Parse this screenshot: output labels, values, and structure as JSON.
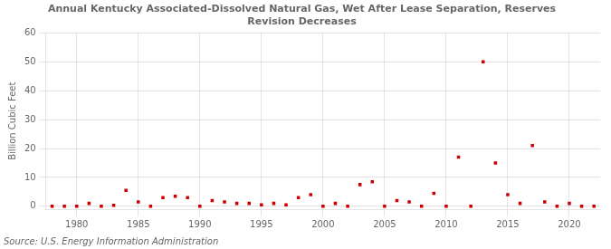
{
  "chart_data": {
    "type": "scatter",
    "title": "Annual Kentucky Associated-Dissolved Natural Gas, Wet After Lease Separation, Reserves\nRevision Decreases",
    "ylabel": "Billion Cubic Feet",
    "source": "Source: U.S. Energy Information Administration",
    "x": [
      1978,
      1979,
      1980,
      1981,
      1982,
      1983,
      1984,
      1985,
      1986,
      1987,
      1988,
      1989,
      1990,
      1991,
      1992,
      1993,
      1994,
      1995,
      1996,
      1997,
      1998,
      1999,
      2000,
      2001,
      2002,
      2003,
      2004,
      2005,
      2006,
      2007,
      2008,
      2009,
      2010,
      2011,
      2012,
      2013,
      2014,
      2015,
      2016,
      2017,
      2018,
      2019,
      2020,
      2021,
      2022
    ],
    "values": [
      0.05,
      0.05,
      0.05,
      1.0,
      0.05,
      0.3,
      5.5,
      1.5,
      0.05,
      3.0,
      3.5,
      3.0,
      0.05,
      2.0,
      1.5,
      1.0,
      1.0,
      0.5,
      1.0,
      0.5,
      3.0,
      4.0,
      0.05,
      1.0,
      0.05,
      7.5,
      8.5,
      0.05,
      2.0,
      1.5,
      0.05,
      4.5,
      0.05,
      17.0,
      0.05,
      50.0,
      15.0,
      4.0,
      1.0,
      21.0,
      1.5,
      0.05,
      1.0,
      0.05,
      0.05
    ],
    "color": "#cc0000",
    "marker": "square",
    "xlim": [
      1977.5,
      2022.5
    ],
    "xticks": [
      1980,
      1985,
      1990,
      1995,
      2000,
      2005,
      2010,
      2015,
      2020
    ],
    "ylim": [
      -1,
      60
    ],
    "yticks": [
      0,
      10,
      20,
      30,
      40,
      50,
      60
    ],
    "grid": true
  }
}
